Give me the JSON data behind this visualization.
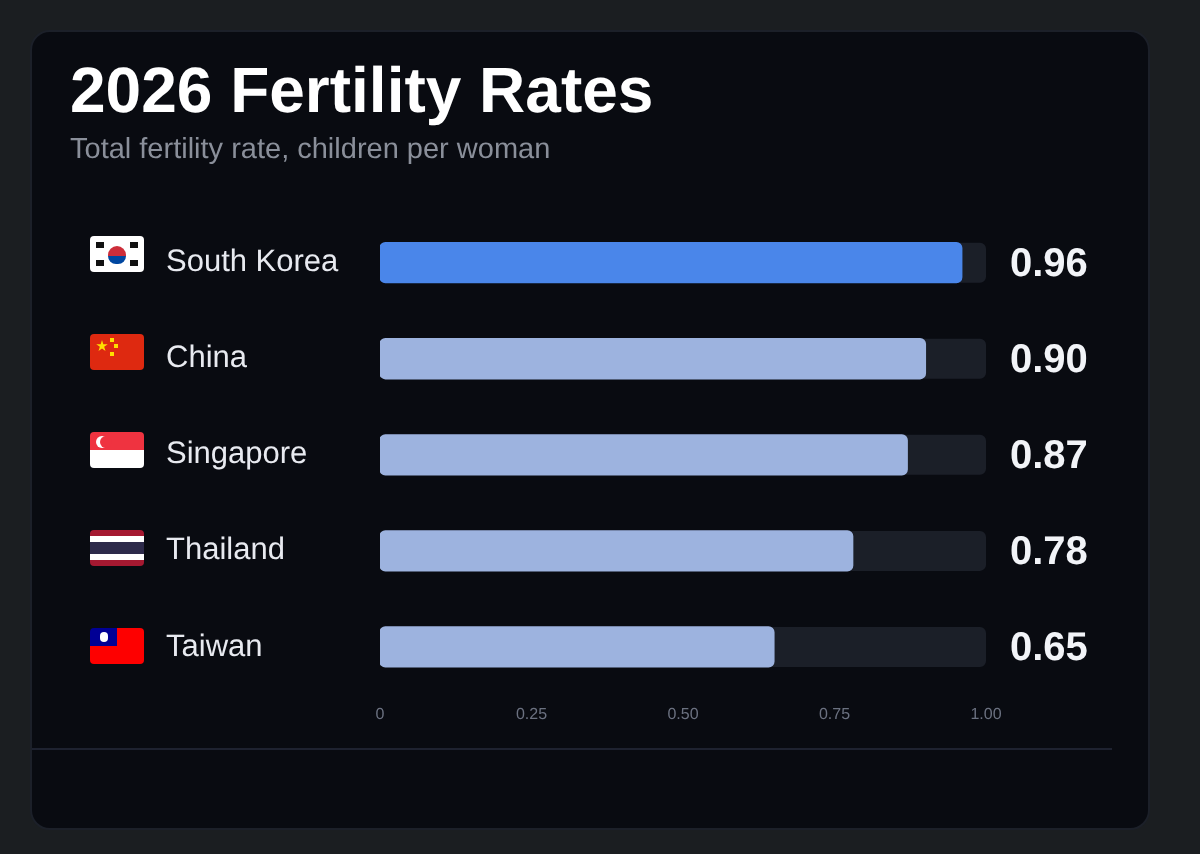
{
  "chart_data": {
    "type": "bar",
    "orientation": "horizontal",
    "title": "2026 Fertility Rates",
    "subtitle": "Total fertility rate, children per woman",
    "categories": [
      "South Korea",
      "China",
      "Singapore",
      "Thailand",
      "Taiwan"
    ],
    "values": [
      0.96,
      0.9,
      0.87,
      0.78,
      0.65
    ],
    "colors": [
      "#4a86ea",
      "#9db3df",
      "#9db3df",
      "#9db3df",
      "#9db3df"
    ],
    "value_labels": [
      "0.96",
      "0.90",
      "0.87",
      "0.78",
      "0.65"
    ],
    "xlim": [
      0,
      1
    ],
    "xticks": [
      0,
      0.25,
      {
        "value": 0.5,
        "label": "0.50"
      },
      0.75,
      {
        "value": 1,
        "label": "1.00"
      }
    ],
    "grid": false,
    "legend": false
  }
}
